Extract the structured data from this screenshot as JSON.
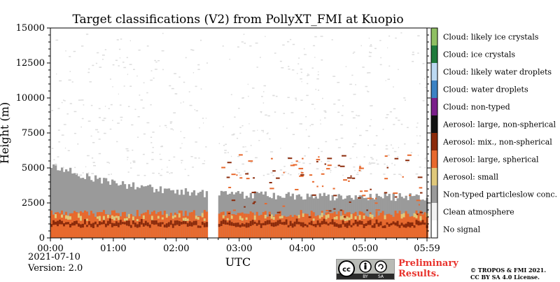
{
  "chart_data": {
    "type": "heatmap",
    "title": "Target classifications (V2) from PollyXT_FMI at Kuopio",
    "xlabel": "UTC",
    "ylabel": "Height (m)",
    "x_ticks": [
      "00:00",
      "01:00",
      "02:00",
      "03:00",
      "04:00",
      "05:00",
      "05:59"
    ],
    "x_range": [
      "00:00",
      "05:59"
    ],
    "y_ticks": [
      0,
      2500,
      5000,
      7500,
      10000,
      12500,
      15000
    ],
    "ylim": [
      0,
      15000
    ],
    "data_gap_utc": [
      "02:30",
      "02:40"
    ],
    "classes": [
      {
        "label": "Cloud: likely ice crystals",
        "color": "#8fbf63"
      },
      {
        "label": "Cloud: ice crystals",
        "color": "#1f7a3c"
      },
      {
        "label": "Cloud: likely water droplets",
        "color": "#bcd9f2"
      },
      {
        "label": "Cloud: water droplets",
        "color": "#3b82c4"
      },
      {
        "label": "Cloud: non-typed",
        "color": "#7a1f8a"
      },
      {
        "label": "Aerosol: large, non-spherical",
        "color": "#111111"
      },
      {
        "label": "Aerosol: mix., non-spherical",
        "color": "#8b2a0a"
      },
      {
        "label": "Aerosol: large, spherical",
        "color": "#e8692d"
      },
      {
        "label": "Aerosol: small",
        "color": "#e0c87a"
      },
      {
        "label": "Non-typed particleslow conc.",
        "color": "#9a9a9a"
      },
      {
        "label": "Clean atmosphere",
        "color": "#f2f2f2"
      },
      {
        "label": "No signal",
        "color": "#ffffff"
      }
    ],
    "layers": [
      {
        "class": "Non-typed particleslow conc.",
        "from_utc": "00:00",
        "to_utc": "05:59",
        "height_m": [
          0,
          5000
        ]
      },
      {
        "class": "Aerosol: large, spherical",
        "from_utc": "00:00",
        "to_utc": "05:59",
        "height_m": [
          0,
          1700
        ]
      },
      {
        "class": "Aerosol: mix., non-spherical",
        "from_utc": "00:00",
        "to_utc": "05:59",
        "height_m": [
          700,
          1200
        ]
      },
      {
        "class": "Aerosol: small",
        "from_utc": "00:00",
        "to_utc": "05:59",
        "height_m": [
          1200,
          1800
        ]
      },
      {
        "class": "Clean atmosphere",
        "from_utc": "00:00",
        "to_utc": "05:59",
        "height_m": [
          1800,
          15000
        ]
      }
    ]
  },
  "footer": {
    "date": "2021-07-10",
    "version": "Version: 2.0",
    "preliminary_line1": "Preliminary",
    "preliminary_line2": "Results.",
    "copyright_line1": "© TROPOS & FMI 2021.",
    "copyright_line2": "CC BY SA 4.0 License.",
    "badge_by": "BY",
    "badge_sa": "SA"
  }
}
